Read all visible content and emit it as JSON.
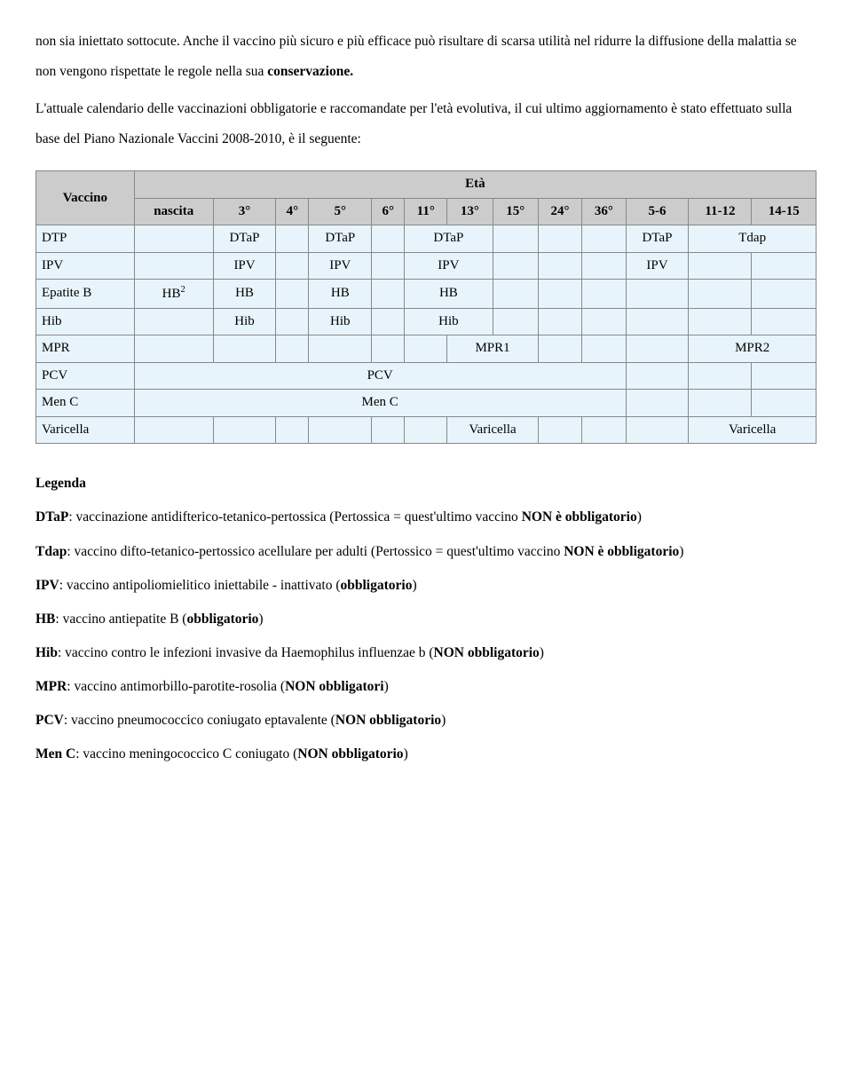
{
  "intro": {
    "p1a": "non sia iniettato sottocute. Anche il vaccino più sicuro e più efficace può risultare di scarsa utilità nel ridurre la diffusione della malattia se non vengono rispettate le regole nella sua ",
    "p1b": "conservazione.",
    "p2": "L'attuale calendario delle vaccinazioni obbligatorie e raccomandate per l'età evolutiva, il cui ultimo aggiornamento è stato effettuato sulla base del Piano Nazionale Vaccini 2008-2010, è il seguente:"
  },
  "table": {
    "corner": "Vaccino",
    "mega_header": "Età",
    "cols": [
      "nascita",
      "3°",
      "4°",
      "5°",
      "6°",
      "11°",
      "13°",
      "15°",
      "24°",
      "36°",
      "5-6",
      "11-12",
      "14-15"
    ],
    "rows": {
      "dtp": {
        "label": "DTP",
        "c3": "DTaP",
        "c5": "DTaP",
        "c13": "DTaP",
        "c56": "DTaP",
        "c1112": "Tdap"
      },
      "ipv": {
        "label": "IPV",
        "c3": "IPV",
        "c5": "IPV",
        "c13": "IPV",
        "c56": "IPV"
      },
      "epb": {
        "label": "Epatite B",
        "cnascita": "HB",
        "sup": "2",
        "c3": "HB",
        "c5": "HB",
        "c13": "HB"
      },
      "hib": {
        "label": "Hib",
        "c3": "Hib",
        "c5": "Hib",
        "c13": "Hib"
      },
      "mpr": {
        "label": "MPR",
        "c15": "MPR1",
        "span56": "MPR2"
      },
      "pcv": {
        "label": "PCV",
        "span_all": "PCV"
      },
      "menc": {
        "label": "Men C",
        "span_all": "Men C"
      },
      "var": {
        "label": "Varicella",
        "c15": "Varicella",
        "span56": "Varicella"
      }
    }
  },
  "legend": {
    "title": "Legenda",
    "dtap_a": "DTaP",
    "dtap_b": ": vaccinazione antidifterico-tetanico-pertossica (Pertossica = quest'ultimo vaccino ",
    "dtap_c": "NON è obbligatorio",
    "dtap_d": ")",
    "tdap_a": "Tdap",
    "tdap_b": ": vaccino difto-tetanico-pertossico acellulare per adulti  (Pertossico = quest'ultimo vaccino ",
    "tdap_c": "NON è obbligatorio",
    "tdap_d": ")",
    "ipv_a": "IPV",
    "ipv_b": ": vaccino antipoliomielitico iniettabile - inattivato (",
    "ipv_c": "obbligatorio",
    "ipv_d": ")",
    "hb_a": "HB",
    "hb_b": ": vaccino antiepatite B (",
    "hb_c": "obbligatorio",
    "hb_d": ")",
    "hib_a": "Hib",
    "hib_b": ": vaccino contro le infezioni invasive da Haemophilus influenzae b (",
    "hib_c": "NON obbligatorio",
    "hib_d": ")",
    "mpr_a": "MPR",
    "mpr_b": ": vaccino antimorbillo-parotite-rosolia (",
    "mpr_c": "NON obbligatori",
    "mpr_d": ")",
    "pcv_a": "PCV",
    "pcv_b": ": vaccino pneumococcico coniugato eptavalente (",
    "pcv_c": "NON obbligatorio",
    "pcv_d": ")",
    "menc_a": "Men C",
    "menc_b": ": vaccino meningococcico C coniugato (",
    "menc_c": "NON obbligatorio",
    "menc_d": ")"
  },
  "style": {
    "header_bg": "#cccccc",
    "cell_bg": "#e8f4fb",
    "border": "#888888",
    "font_family": "Times New Roman",
    "body_fontsize": 15.5,
    "table_fontsize": 15
  }
}
